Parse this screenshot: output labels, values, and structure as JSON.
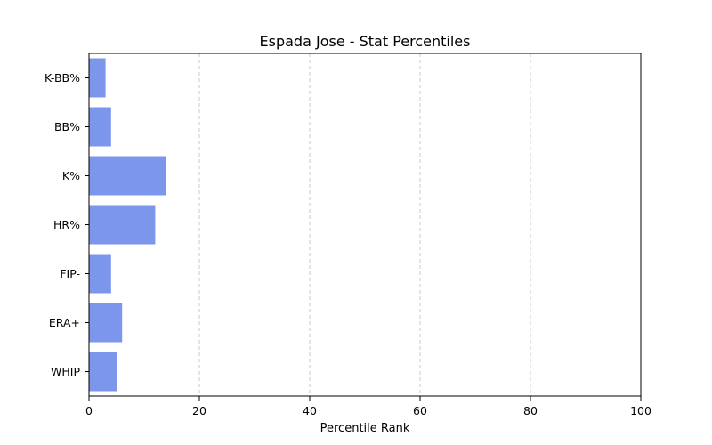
{
  "chart_data": {
    "type": "bar",
    "orientation": "horizontal",
    "title": "Espada Jose - Stat Percentiles",
    "xlabel": "Percentile Rank",
    "ylabel": "",
    "categories": [
      "WHIP",
      "ERA+",
      "FIP-",
      "HR%",
      "K%",
      "BB%",
      "K-BB%"
    ],
    "values": [
      5,
      6,
      4,
      12,
      14,
      4,
      3
    ],
    "xlim": [
      0,
      100
    ],
    "xticks": [
      0,
      20,
      40,
      60,
      80,
      100
    ],
    "grid": "x-dashed",
    "bar_color": "#7b96eb",
    "legend": "none"
  }
}
